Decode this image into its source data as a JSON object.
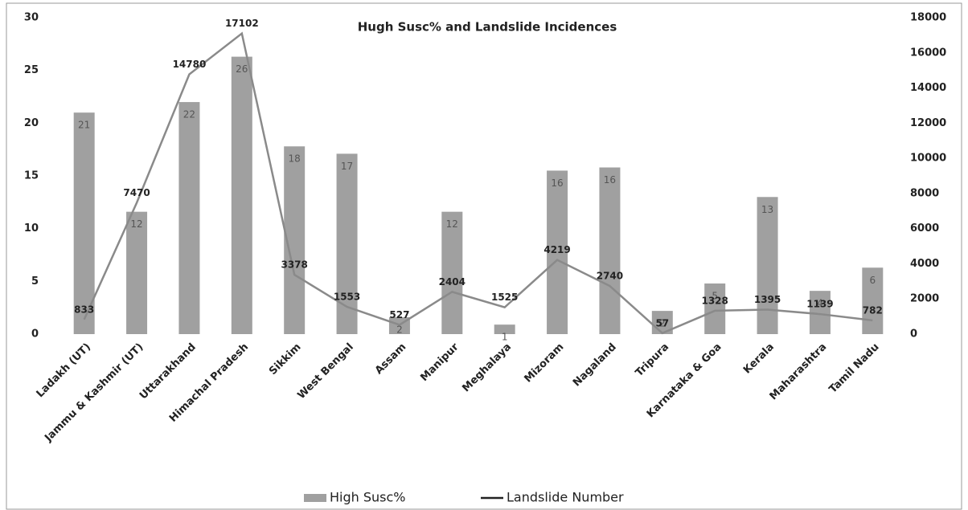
{
  "chart_data": {
    "type": "bar-line",
    "title": "Hugh Susc% and Landslide Incidences",
    "categories": [
      "Ladakh (UT)",
      "Jammu & Kashmir (UT)",
      "Uttarakhand",
      "Himachal Pradesh",
      "Sikkim",
      "West Bengal",
      "Assam",
      "Manipur",
      "Meghalaya",
      "Mizoram",
      "Nagaland",
      "Tripura",
      "Karnataka & Goa",
      "Kerala",
      "Maharashtra",
      "Tamil Nadu"
    ],
    "series": [
      {
        "name": "High Susc%",
        "type": "bar",
        "color": "#a0a0a0",
        "values": [
          21,
          11.6,
          22,
          26.3,
          17.8,
          17.1,
          1.6,
          11.6,
          0.9,
          15.5,
          15.8,
          2.2,
          4.8,
          13,
          4.1,
          6.3
        ],
        "value_labels": [
          "21",
          "12",
          "22",
          "26",
          "18",
          "17",
          "2",
          "12",
          "1",
          "16",
          "16",
          "2",
          "5",
          "13",
          "4",
          "6"
        ]
      },
      {
        "name": "Landslide Number",
        "type": "line",
        "axis": "y2",
        "color": "#8a8a8a",
        "values": [
          833,
          7470,
          14780,
          17102,
          3378,
          1553,
          527,
          2404,
          1525,
          4219,
          2740,
          57,
          1328,
          1395,
          1139,
          782
        ]
      }
    ],
    "ylim": [
      0,
      30
    ],
    "yticks": [
      0,
      5,
      10,
      15,
      20,
      25,
      30
    ],
    "y2lim": [
      0,
      18000
    ],
    "y2ticks": [
      0,
      2000,
      4000,
      6000,
      8000,
      10000,
      12000,
      14000,
      16000,
      18000
    ],
    "grid": false,
    "legend": "bottom"
  }
}
